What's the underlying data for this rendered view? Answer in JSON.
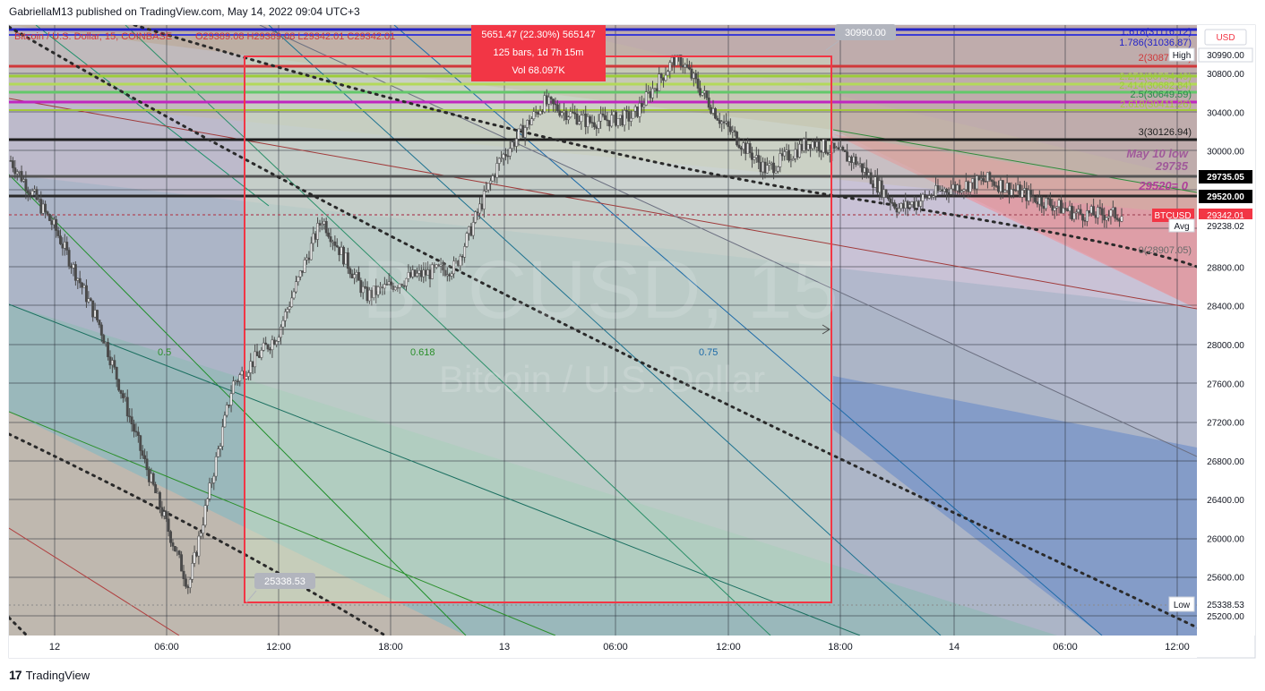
{
  "header": {
    "published_text": "GabriellaM13 published on TradingView.com, May 14, 2022 09:04 UTC+3"
  },
  "symbol_line": {
    "title": "Bitcoin / U.S. Dollar, 15, COINBASE",
    "ohlc": "O29389.08 H29389.08 L29342.01 C29342.01"
  },
  "watermark": {
    "symbol": "BTCUSD, 15",
    "name": "Bitcoin / U.S. Dollar"
  },
  "footer": {
    "logo_glyph": "17",
    "brand": "TradingView"
  },
  "measure_box": {
    "line1": "5651.47 (22.30%) 565147",
    "line2": "125 bars, 1d 7h 15m",
    "line3": "Vol 68.097K",
    "high_label": "30990.00",
    "low_label": "25338.53",
    "color": "#f23645"
  },
  "fib_labels": {
    "f1618": "1.618(31116.12)",
    "f1786": "1.786(31036.87)",
    "f2": "2(30876.18)",
    "f2272": "2.272(30754.49)",
    "f2414": "2.414(30682.84)",
    "f25": "2.5(30649.59)",
    "f2618": "2.618(30411.26)",
    "f3": "3(30126.94)",
    "f0": "0(28907.05)"
  },
  "fan_labels": {
    "f05": "0.5",
    "f0618": "0.618",
    "f075": "0.75"
  },
  "annotations": {
    "may10_line1": "May 10 low",
    "may10_line2": "29735",
    "level29520": "29520= 0"
  },
  "price_axis": {
    "currency": "USD",
    "ticks": [
      "30800.00",
      "30400.00",
      "30000.00",
      "28800.00",
      "28400.00",
      "28000.00",
      "27600.00",
      "27200.00",
      "26800.00",
      "26400.00",
      "26000.00",
      "25600.00",
      "25200.00"
    ],
    "badges": {
      "high_tag": "High",
      "high": "30990.00",
      "level_29735": "29735.05",
      "level_29520": "29520.00",
      "symbol_tag": "BTCUSD",
      "last": "29342.01",
      "avg_tag": "Avg",
      "avg": "29238.02",
      "low_tag": "Low",
      "low": "25338.53"
    }
  },
  "time_axis": {
    "ticks": [
      "12",
      "06:00",
      "12:00",
      "18:00",
      "13",
      "06:00",
      "12:00",
      "18:00",
      "14",
      "06:00",
      "12:00"
    ]
  },
  "colors": {
    "up": "#26a69a",
    "down": "#ef5350",
    "candle_dark": "#4a4a4a",
    "badge_dark": "#000000",
    "badge_red": "#f23645",
    "fib_green": "#9ccc3a",
    "fib_magenta": "#c026c0",
    "fib_blue": "#2323c8"
  },
  "chart_data": {
    "type": "candlestick",
    "symbol": "BTCUSD",
    "interval": "15",
    "exchange": "COINBASE",
    "ylim": [
      25100,
      31250
    ],
    "x": [
      "12 00:00",
      "12 03:00",
      "12 06:00",
      "12 09:00",
      "12 10:00",
      "12 12:00",
      "12 15:00",
      "12 18:00",
      "12 21:00",
      "13 00:00",
      "13 03:00",
      "13 06:00",
      "13 09:00",
      "13 12:00",
      "13 15:00",
      "13 17:00",
      "13 18:00",
      "13 20:00",
      "13 21:00",
      "13 23:00",
      "14 00:00",
      "14 02:00",
      "14 04:00",
      "14 06:00",
      "14 07:00",
      "14 08:30"
    ],
    "close": [
      29900,
      29200,
      28200,
      26800,
      25500,
      27600,
      28100,
      29300,
      28500,
      28700,
      28800,
      29900,
      30500,
      30300,
      30350,
      30990,
      30300,
      29800,
      30100,
      29900,
      29400,
      29600,
      29700,
      29520,
      29350,
      29342.01
    ],
    "high": 30990.0,
    "low": 25338.53,
    "last": 29342.01,
    "avg": 29238.02,
    "levels": [
      30126.94,
      29735.05,
      29520.0,
      28907.05
    ],
    "fib_extension": [
      {
        "ratio": "1.618",
        "price": 31116.12
      },
      {
        "ratio": "1.786",
        "price": 31036.87
      },
      {
        "ratio": "2",
        "price": 30876.18
      },
      {
        "ratio": "2.272",
        "price": 30754.49
      },
      {
        "ratio": "2.414",
        "price": 30682.84
      },
      {
        "ratio": "2.5",
        "price": 30649.59
      },
      {
        "ratio": "2.618",
        "price": 30411.26
      },
      {
        "ratio": "3",
        "price": 30126.94
      },
      {
        "ratio": "0",
        "price": 28907.05
      }
    ],
    "price_range_measure": {
      "change": 5651.47,
      "percent": 22.3,
      "bars": 125,
      "duration": "1d 7h 15m",
      "volume": "68.097K"
    }
  }
}
